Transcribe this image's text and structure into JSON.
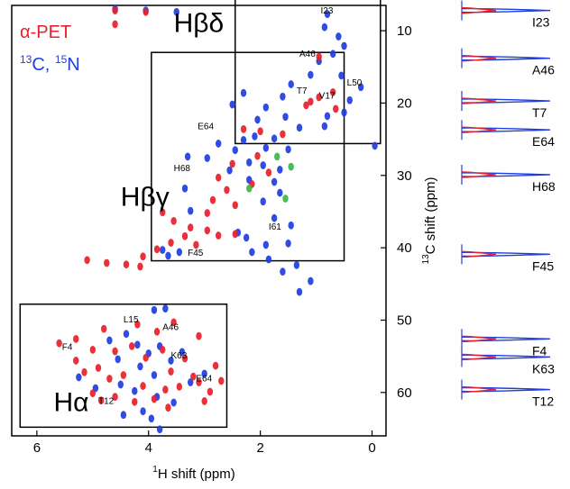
{
  "chart_data": {
    "type": "scatter",
    "xlabel_prefix": "1",
    "xlabel_text": "H shift (ppm)",
    "ylabel_prefix": "13",
    "ylabel_text": "C shift (ppm)",
    "xlim": [
      6.45,
      -0.25
    ],
    "ylim": [
      6.5,
      66
    ],
    "x_ticks": [
      {
        "value": 6,
        "label": "6"
      },
      {
        "value": 4,
        "label": "4"
      },
      {
        "value": 2,
        "label": "2"
      },
      {
        "value": 0,
        "label": "0"
      }
    ],
    "y_ticks": [
      {
        "value": 10,
        "label": "10"
      },
      {
        "value": 20,
        "label": "20"
      },
      {
        "value": 30,
        "label": "30"
      },
      {
        "value": 40,
        "label": "40"
      },
      {
        "value": 50,
        "label": "50"
      },
      {
        "value": 60,
        "label": "60"
      }
    ],
    "legend": {
      "red_label": "α-PET",
      "blue_prefix": "13",
      "blue_mid": "C, ",
      "blue_prefix2": "15",
      "blue_suffix": "N",
      "red_color": "#e8202a",
      "blue_color": "#1f3de0"
    },
    "series": [
      {
        "name": "α-PET",
        "color": "#e8202a",
        "points": [
          [
            4.6,
            7.2
          ],
          [
            4.05,
            7.4
          ],
          [
            4.6,
            9.1
          ],
          [
            1.18,
            20.3
          ],
          [
            0.95,
            19.2
          ],
          [
            1.1,
            19.8
          ],
          [
            0.65,
            20.8
          ],
          [
            2.3,
            23.6
          ],
          [
            2.0,
            23.9
          ],
          [
            1.6,
            24.3
          ],
          [
            0.95,
            13.6
          ],
          [
            0.7,
            18.5
          ],
          [
            2.5,
            28.4
          ],
          [
            2.75,
            30.3
          ],
          [
            2.15,
            31.2
          ],
          [
            2.6,
            32.0
          ],
          [
            2.85,
            33.4
          ],
          [
            2.45,
            34.1
          ],
          [
            2.95,
            35.2
          ],
          [
            3.75,
            35.1
          ],
          [
            3.55,
            36.3
          ],
          [
            3.25,
            37.2
          ],
          [
            2.95,
            37.6
          ],
          [
            3.35,
            38.4
          ],
          [
            3.6,
            39.3
          ],
          [
            3.85,
            40.2
          ],
          [
            3.15,
            39.6
          ],
          [
            2.75,
            38.3
          ],
          [
            2.45,
            38.1
          ],
          [
            4.1,
            41.2
          ],
          [
            4.4,
            42.3
          ],
          [
            4.15,
            42.6
          ],
          [
            4.75,
            42.1
          ],
          [
            5.1,
            41.7
          ],
          [
            1.85,
            29.6
          ],
          [
            2.05,
            27.3
          ],
          [
            4.8,
            51.2
          ],
          [
            4.2,
            50.6
          ],
          [
            3.85,
            51.6
          ],
          [
            3.55,
            50.3
          ],
          [
            3.1,
            52.2
          ],
          [
            5.6,
            53.2
          ],
          [
            5.3,
            52.6
          ],
          [
            4.6,
            54.3
          ],
          [
            4.3,
            53.6
          ],
          [
            4.05,
            55.2
          ],
          [
            3.75,
            54.1
          ],
          [
            3.35,
            55.3
          ],
          [
            3.6,
            57.1
          ],
          [
            3.2,
            57.8
          ],
          [
            2.8,
            56.3
          ],
          [
            5.15,
            57.2
          ],
          [
            4.9,
            56.6
          ],
          [
            4.7,
            58.1
          ],
          [
            4.45,
            57.6
          ],
          [
            4.1,
            59.1
          ],
          [
            3.7,
            59.6
          ],
          [
            3.45,
            59.2
          ],
          [
            3.1,
            58.6
          ],
          [
            2.9,
            59.9
          ],
          [
            5.0,
            60.1
          ],
          [
            4.85,
            61.1
          ],
          [
            4.6,
            60.6
          ],
          [
            4.25,
            61.3
          ],
          [
            3.9,
            60.9
          ],
          [
            3.65,
            62.1
          ],
          [
            5.3,
            55.6
          ],
          [
            5.0,
            54.1
          ],
          [
            3.0,
            61.2
          ],
          [
            2.7,
            58.4
          ]
        ]
      },
      {
        "name": "13C, 15N",
        "color": "#1f3de0",
        "points": [
          [
            4.6,
            7.0
          ],
          [
            4.05,
            7.2
          ],
          [
            3.5,
            7.4
          ],
          [
            0.8,
            7.7
          ],
          [
            0.85,
            9.5
          ],
          [
            0.6,
            10.8
          ],
          [
            0.5,
            12.1
          ],
          [
            0.7,
            13.2
          ],
          [
            0.95,
            14.2
          ],
          [
            1.1,
            16.1
          ],
          [
            0.2,
            17.8
          ],
          [
            0.55,
            16.2
          ],
          [
            0.4,
            19.6
          ],
          [
            0.5,
            21.3
          ],
          [
            0.8,
            21.8
          ],
          [
            0.85,
            23.2
          ],
          [
            1.45,
            17.4
          ],
          [
            1.6,
            19.1
          ],
          [
            2.3,
            18.6
          ],
          [
            2.5,
            20.2
          ],
          [
            1.9,
            20.6
          ],
          [
            2.05,
            22.3
          ],
          [
            1.55,
            21.9
          ],
          [
            1.3,
            23.4
          ],
          [
            2.1,
            24.6
          ],
          [
            1.75,
            24.9
          ],
          [
            2.3,
            25.1
          ],
          [
            2.45,
            26.5
          ],
          [
            1.9,
            26.2
          ],
          [
            1.5,
            26.4
          ],
          [
            2.2,
            28.2
          ],
          [
            1.95,
            28.6
          ],
          [
            1.65,
            29.2
          ],
          [
            2.2,
            30.6
          ],
          [
            1.75,
            30.9
          ],
          [
            2.55,
            29.3
          ],
          [
            -0.05,
            25.9
          ],
          [
            2.75,
            25.6
          ],
          [
            2.95,
            27.6
          ],
          [
            3.3,
            27.4
          ],
          [
            3.35,
            31.8
          ],
          [
            3.25,
            34.9
          ],
          [
            1.65,
            32.4
          ],
          [
            1.95,
            33.6
          ],
          [
            1.75,
            35.9
          ],
          [
            1.45,
            36.9
          ],
          [
            1.5,
            39.4
          ],
          [
            1.9,
            39.6
          ],
          [
            2.25,
            38.6
          ],
          [
            2.4,
            37.9
          ],
          [
            1.35,
            42.4
          ],
          [
            1.6,
            43.3
          ],
          [
            1.1,
            44.6
          ],
          [
            1.3,
            46.1
          ],
          [
            3.75,
            40.3
          ],
          [
            3.65,
            41.1
          ],
          [
            3.45,
            40.6
          ],
          [
            2.15,
            40.6
          ],
          [
            1.85,
            41.6
          ],
          [
            3.9,
            48.6
          ],
          [
            3.7,
            48.4
          ],
          [
            4.2,
            53.4
          ],
          [
            4.0,
            54.6
          ],
          [
            3.8,
            53.6
          ],
          [
            3.6,
            55.6
          ],
          [
            3.4,
            54.4
          ],
          [
            4.15,
            56.4
          ],
          [
            3.9,
            57.6
          ],
          [
            3.25,
            58.6
          ],
          [
            3.0,
            57.4
          ],
          [
            4.5,
            58.9
          ],
          [
            4.25,
            59.8
          ],
          [
            3.85,
            60.6
          ],
          [
            3.55,
            61.4
          ],
          [
            4.95,
            59.4
          ],
          [
            5.25,
            57.9
          ],
          [
            4.4,
            51.9
          ],
          [
            4.7,
            52.8
          ],
          [
            4.55,
            55.4
          ],
          [
            3.95,
            63.6
          ],
          [
            3.8,
            65.1
          ],
          [
            4.45,
            63.1
          ],
          [
            4.1,
            62.6
          ]
        ]
      },
      {
        "name": "",
        "color": "#3cb44b",
        "points": [
          [
            1.7,
            27.4
          ],
          [
            1.45,
            28.8
          ],
          [
            2.2,
            31.8
          ],
          [
            1.55,
            33.2
          ]
        ]
      }
    ],
    "boxes": [
      {
        "name": "Hβδ",
        "x1": 2.45,
        "x2": -0.15,
        "y1": 5.5,
        "y2": 25.6
      },
      {
        "name": "Hβγ",
        "x1": 3.95,
        "x2": 0.5,
        "y1": 13.0,
        "y2": 41.8
      },
      {
        "name": "Hα",
        "x1": 6.3,
        "x2": 2.6,
        "y1": 47.8,
        "y2": 64.8
      }
    ],
    "region_labels": [
      {
        "text": "Hβδ",
        "x": 3.55,
        "y": 10.2
      },
      {
        "text": "Hβγ",
        "x": 4.5,
        "y": 34.2
      },
      {
        "text": "Hα",
        "x": 5.7,
        "y": 62.6
      }
    ],
    "peak_labels": [
      {
        "text": "I23",
        "x": 0.92,
        "y": 7.6
      },
      {
        "text": "A46",
        "x": 1.3,
        "y": 13.6
      },
      {
        "text": "L50",
        "x": 0.45,
        "y": 17.6
      },
      {
        "text": "T7",
        "x": 1.35,
        "y": 18.7
      },
      {
        "text": "V17",
        "x": 0.95,
        "y": 19.4
      },
      {
        "text": "E64",
        "x": 3.12,
        "y": 23.6
      },
      {
        "text": "H68",
        "x": 3.55,
        "y": 29.4
      },
      {
        "text": "I61",
        "x": 1.85,
        "y": 37.5
      },
      {
        "text": "F45",
        "x": 3.3,
        "y": 41.1
      },
      {
        "text": "L15",
        "x": 4.45,
        "y": 50.3
      },
      {
        "text": "A46",
        "x": 3.75,
        "y": 51.4
      },
      {
        "text": "F4",
        "x": 5.55,
        "y": 54.1
      },
      {
        "text": "K63",
        "x": 3.6,
        "y": 55.3
      },
      {
        "text": "E64",
        "x": 3.15,
        "y": 58.5
      },
      {
        "text": "T12",
        "x": 4.9,
        "y": 61.6
      }
    ],
    "traces": [
      {
        "label": "I23",
        "y": 7.2
      },
      {
        "label": "A46",
        "y": 13.8
      },
      {
        "label": "T7",
        "y": 19.7
      },
      {
        "label": "E64",
        "y": 23.7
      },
      {
        "label": "H68",
        "y": 29.9
      },
      {
        "label": "F45",
        "y": 40.9
      },
      {
        "label": "F4",
        "y": 52.6
      },
      {
        "label": "K63",
        "y": 55.1
      },
      {
        "label": "T12",
        "y": 59.6
      }
    ]
  }
}
